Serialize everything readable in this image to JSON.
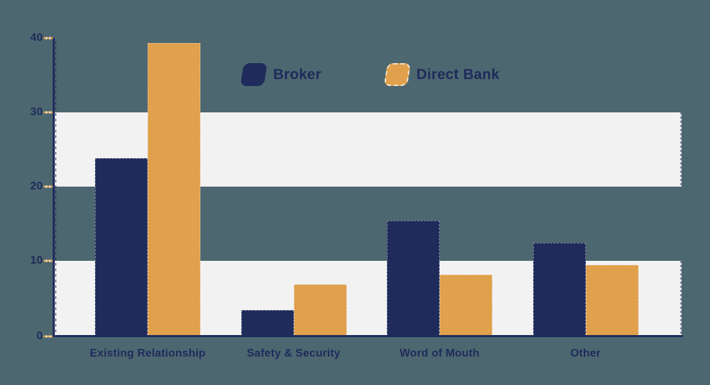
{
  "chart_data": {
    "type": "bar",
    "title": "",
    "xlabel": "",
    "ylabel": "",
    "categories": [
      "Existing Relationship",
      "Safety & Security",
      "Word of Mouth",
      "Other"
    ],
    "series": [
      {
        "name": "Broker",
        "color": "#1F2B5B",
        "values": [
          23.8,
          3.4,
          15.4,
          12.4
        ]
      },
      {
        "name": "Direct Bank",
        "color": "#E0A04C",
        "values": [
          39.3,
          6.8,
          8.1,
          9.4
        ]
      }
    ],
    "ylim": [
      0,
      40
    ],
    "yticks": [
      0,
      10,
      20,
      30,
      40
    ],
    "grid_bands": [
      [
        0,
        10
      ],
      [
        20,
        30
      ]
    ],
    "legend_position": "top-center",
    "legend": [
      "Broker",
      "Direct Bank"
    ]
  },
  "colors": {
    "background": "#4D6770",
    "band": "#F2F2F3",
    "axis": "#1F2B5B",
    "text": "#1F2B5B",
    "tick_dash": "#E0A04C",
    "broker": "#1F2B5B",
    "direct_bank": "#E0A04C"
  }
}
